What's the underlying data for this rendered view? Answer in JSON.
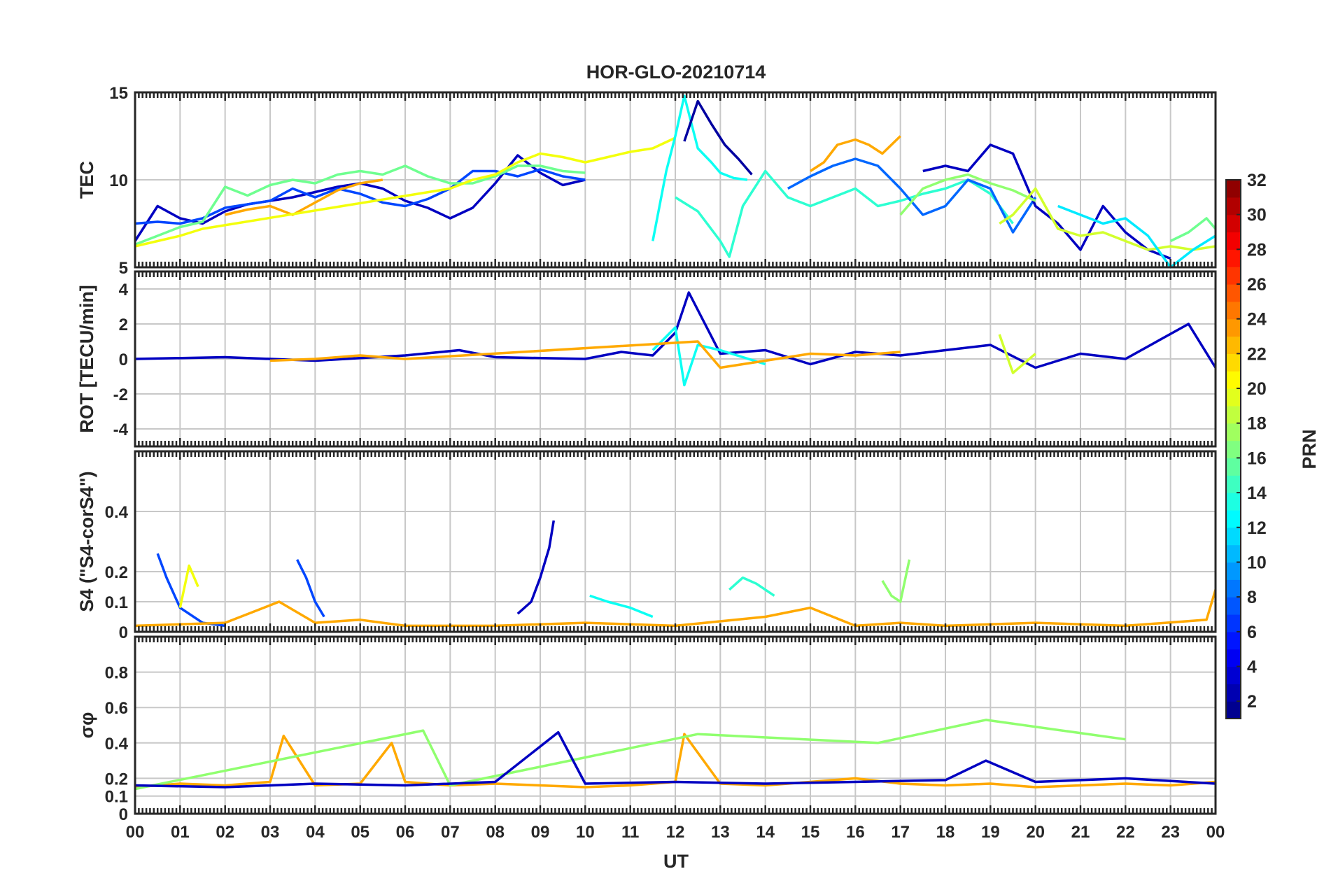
{
  "chart_data": {
    "type": "line",
    "title": "HOR-GLO-20210714",
    "xlabel": "UT",
    "x_ticks": [
      "00",
      "01",
      "02",
      "03",
      "04",
      "05",
      "06",
      "07",
      "08",
      "09",
      "10",
      "11",
      "12",
      "13",
      "14",
      "15",
      "16",
      "17",
      "18",
      "19",
      "20",
      "21",
      "22",
      "23",
      "00"
    ],
    "xlim": [
      0,
      24
    ],
    "grid": true,
    "legend": "colorbar-right",
    "colorbar": {
      "label": "PRN",
      "range": [
        1,
        32
      ],
      "ticks": [
        "2",
        "4",
        "6",
        "8",
        "10",
        "12",
        "14",
        "16",
        "18",
        "20",
        "22",
        "24",
        "26",
        "28",
        "30",
        "32"
      ],
      "colormap": "jet"
    },
    "panels": [
      {
        "ylabel": "TEC",
        "ylim": [
          5,
          15
        ],
        "yticks": [
          "5",
          "10",
          "15"
        ],
        "series": [
          {
            "prn": 3,
            "x": [
              0,
              0.5,
              1,
              1.5,
              2,
              2.5,
              3,
              3.5,
              4,
              4.5,
              5,
              5.5,
              6,
              6.5,
              7,
              7.5,
              8,
              8.5,
              9,
              9.5,
              10
            ],
            "y": [
              6.5,
              8.5,
              7.8,
              7.5,
              8.2,
              8.6,
              8.8,
              9.0,
              9.3,
              9.6,
              9.8,
              9.5,
              8.8,
              8.4,
              7.8,
              8.4,
              9.8,
              11.4,
              10.4,
              9.7,
              10.0
            ]
          },
          {
            "prn": 7,
            "x": [
              0,
              0.5,
              1,
              1.5,
              2,
              2.5,
              3,
              3.5,
              4,
              4.5,
              5,
              5.5,
              6,
              6.5,
              7,
              7.5,
              8,
              8.5,
              9,
              9.5,
              10
            ],
            "y": [
              7.5,
              7.6,
              7.5,
              7.8,
              8.4,
              8.6,
              8.8,
              9.5,
              9.0,
              9.5,
              9.2,
              8.7,
              8.5,
              8.9,
              9.5,
              10.5,
              10.5,
              10.2,
              10.6,
              10.2,
              10.0
            ]
          },
          {
            "prn": 16,
            "x": [
              0,
              0.5,
              1,
              1.5,
              2,
              2.5,
              3,
              3.5,
              4,
              4.5,
              5,
              5.5,
              6,
              6.5,
              7,
              7.5,
              8,
              8.5,
              9,
              9.5,
              10
            ],
            "y": [
              6.3,
              6.8,
              7.3,
              7.6,
              9.6,
              9.1,
              9.7,
              10.0,
              9.8,
              10.3,
              10.5,
              10.3,
              10.8,
              10.2,
              9.8,
              9.8,
              10.2,
              10.8,
              10.8,
              10.5,
              10.4
            ]
          },
          {
            "prn": 23,
            "x": [
              2,
              2.5,
              3,
              3.5,
              4,
              4.5,
              5,
              5.5
            ],
            "y": [
              8.0,
              8.3,
              8.5,
              8.0,
              8.7,
              9.4,
              9.8,
              10.0
            ]
          },
          {
            "prn": 20,
            "x": [
              0,
              0.5,
              1,
              1.5,
              7,
              7.5,
              8,
              8.5,
              9,
              9.5,
              10,
              10.5,
              11,
              11.5,
              12
            ],
            "y": [
              6.2,
              6.5,
              6.8,
              7.2,
              9.5,
              10.0,
              10.3,
              11.0,
              11.5,
              11.3,
              11.0,
              11.3,
              11.6,
              11.8,
              12.4
            ]
          },
          {
            "prn": 13,
            "x": [
              11.5,
              11.8,
              12.0,
              12.2,
              12.5,
              12.8,
              13.0,
              13.3,
              13.6
            ],
            "y": [
              6.5,
              10.5,
              12.5,
              14.8,
              11.8,
              11.0,
              10.4,
              10.1,
              10.0
            ]
          },
          {
            "prn": 14,
            "x": [
              12.0,
              12.5,
              13.0,
              13.2,
              13.5,
              14.0,
              14.5,
              15.0,
              15.5,
              16.0,
              16.5,
              17.0,
              17.5,
              18.0,
              18.5,
              19.0,
              19.5
            ],
            "y": [
              9.0,
              8.2,
              6.5,
              5.6,
              8.5,
              10.5,
              9.0,
              8.5,
              9.0,
              9.5,
              8.5,
              8.8,
              9.2,
              9.5,
              10.0,
              9.2,
              7.5
            ]
          },
          {
            "prn": 2,
            "x": [
              12.2,
              12.5,
              12.8,
              13.1,
              13.4,
              13.7
            ],
            "y": [
              12.2,
              14.5,
              13.2,
              12.0,
              11.2,
              10.3
            ]
          },
          {
            "prn": 23,
            "x": [
              15.0,
              15.3,
              15.6,
              16.0,
              16.3,
              16.6,
              17.0
            ],
            "y": [
              10.5,
              11.0,
              12.0,
              12.3,
              12.0,
              11.5,
              12.5
            ]
          },
          {
            "prn": 8,
            "x": [
              14.5,
              15.0,
              15.5,
              16.0,
              16.5,
              17.0,
              17.5,
              18.0,
              18.5,
              19.0,
              19.5,
              20.0
            ],
            "y": [
              9.5,
              10.2,
              10.8,
              11.2,
              10.8,
              9.5,
              8.0,
              8.5,
              10.0,
              9.5,
              7.0,
              9.0
            ]
          },
          {
            "prn": 3,
            "x": [
              17.5,
              18.0,
              18.5,
              19.0,
              19.5,
              20.0,
              20.5,
              21.0,
              21.5,
              22.0,
              22.5,
              23.0
            ],
            "y": [
              10.5,
              10.8,
              10.5,
              12.0,
              11.5,
              8.5,
              7.5,
              6.0,
              8.5,
              7.0,
              6.0,
              5.5
            ]
          },
          {
            "prn": 17,
            "x": [
              17.0,
              17.5,
              18.0,
              18.5,
              19.0,
              19.5,
              20.0
            ],
            "y": [
              8.0,
              9.5,
              10.0,
              10.3,
              9.8,
              9.4,
              8.8
            ]
          },
          {
            "prn": 19,
            "x": [
              19.2,
              19.5,
              20.0,
              20.5,
              21.0,
              21.5,
              22.0,
              22.5,
              23.0,
              23.5,
              24.0
            ],
            "y": [
              7.5,
              8.0,
              9.5,
              7.2,
              6.8,
              7.0,
              6.5,
              6.0,
              6.2,
              6.0,
              6.2
            ]
          },
          {
            "prn": 12,
            "x": [
              20.5,
              21.0,
              21.5,
              22.0,
              22.5,
              23.0,
              23.5,
              24.0
            ],
            "y": [
              8.5,
              8.0,
              7.5,
              7.8,
              6.8,
              5.0,
              6.0,
              6.8
            ]
          },
          {
            "prn": 16,
            "x": [
              23.0,
              23.4,
              23.8,
              24.0
            ],
            "y": [
              6.5,
              7.0,
              7.8,
              7.2
            ]
          }
        ]
      },
      {
        "ylabel": "ROT [TECU/min]",
        "ylim": [
          -5,
          5
        ],
        "yticks": [
          "-4",
          "-2",
          "0",
          "2",
          "4"
        ],
        "series": [
          {
            "prn": 3,
            "x": [
              0,
              2,
              4,
              6,
              7.2,
              8,
              10,
              10.8,
              11.5,
              12.0,
              12.3,
              13,
              14,
              15,
              16,
              17,
              18,
              19,
              20,
              21,
              22,
              23.4,
              24
            ],
            "y": [
              0,
              0.1,
              -0.1,
              0.2,
              0.5,
              0.1,
              0,
              0.4,
              0.2,
              1.5,
              3.8,
              0.3,
              0.5,
              -0.3,
              0.4,
              0.2,
              0.5,
              0.8,
              -0.5,
              0.3,
              0,
              2.0,
              -0.5
            ]
          },
          {
            "prn": 13,
            "x": [
              11.5,
              12.0,
              12.2,
              12.5,
              13,
              14
            ],
            "y": [
              0.5,
              1.8,
              -1.5,
              0.8,
              0.5,
              -0.3
            ]
          },
          {
            "prn": 23,
            "x": [
              3,
              4,
              5,
              6,
              12.5,
              13,
              15,
              16,
              17
            ],
            "y": [
              -0.1,
              0,
              0.2,
              0,
              1.0,
              -0.5,
              0.3,
              0.2,
              0.4
            ]
          },
          {
            "prn": 19,
            "x": [
              19.2,
              19.5,
              20
            ],
            "y": [
              1.4,
              -0.8,
              0.3
            ]
          }
        ]
      },
      {
        "ylabel": "S4 (\"S4-corS4\")",
        "ylim": [
          0,
          0.6
        ],
        "yticks": [
          "0",
          "0.1",
          "0.2",
          "0.4"
        ],
        "series": [
          {
            "prn": 7,
            "x": [
              0.5,
              0.7,
              1.0,
              1.5,
              2.0
            ],
            "y": [
              0.26,
              0.18,
              0.08,
              0.03,
              0.02
            ]
          },
          {
            "prn": 20,
            "x": [
              1.0,
              1.2,
              1.4
            ],
            "y": [
              0.08,
              0.22,
              0.15
            ]
          },
          {
            "prn": 7,
            "x": [
              3.6,
              3.8,
              4.0,
              4.2
            ],
            "y": [
              0.24,
              0.18,
              0.1,
              0.05
            ]
          },
          {
            "prn": 3,
            "x": [
              8.5,
              8.8,
              9.0,
              9.2,
              9.3
            ],
            "y": [
              0.06,
              0.1,
              0.18,
              0.28,
              0.37
            ]
          },
          {
            "prn": 13,
            "x": [
              10.1,
              10.5,
              11.0,
              11.5
            ],
            "y": [
              0.12,
              0.1,
              0.08,
              0.05
            ]
          },
          {
            "prn": 14,
            "x": [
              13.2,
              13.5,
              13.8,
              14.2
            ],
            "y": [
              0.14,
              0.18,
              0.16,
              0.12
            ]
          },
          {
            "prn": 17,
            "x": [
              16.6,
              16.8,
              17.0,
              17.2
            ],
            "y": [
              0.17,
              0.12,
              0.1,
              0.24
            ]
          },
          {
            "prn": 23,
            "x": [
              0,
              2,
              3.2,
              4,
              5,
              6,
              8,
              10,
              12,
              14,
              15,
              16,
              17,
              18,
              20,
              22,
              23.8,
              24
            ],
            "y": [
              0.02,
              0.03,
              0.1,
              0.03,
              0.04,
              0.02,
              0.02,
              0.03,
              0.02,
              0.05,
              0.08,
              0.02,
              0.03,
              0.02,
              0.03,
              0.02,
              0.04,
              0.14
            ]
          }
        ]
      },
      {
        "ylabel": "σφ",
        "ylim": [
          0,
          1
        ],
        "yticks": [
          "0",
          "0.1",
          "0.2",
          "0.4",
          "0.6",
          "0.8"
        ],
        "series": [
          {
            "prn": 23,
            "x": [
              0,
              1,
              2,
              3,
              3.3,
              4,
              5,
              5.7,
              6,
              7,
              8,
              9,
              10,
              11,
              12,
              12.2,
              13,
              14,
              15,
              16,
              17,
              18,
              19,
              20,
              21,
              22,
              23,
              24
            ],
            "y": [
              0.15,
              0.17,
              0.16,
              0.18,
              0.44,
              0.16,
              0.17,
              0.4,
              0.18,
              0.16,
              0.17,
              0.16,
              0.15,
              0.16,
              0.18,
              0.45,
              0.17,
              0.16,
              0.18,
              0.2,
              0.17,
              0.16,
              0.17,
              0.15,
              0.16,
              0.17,
              0.16,
              0.18
            ]
          },
          {
            "prn": 17,
            "x": [
              0,
              6.4,
              7,
              12.5,
              16.5,
              18.9,
              22
            ],
            "y": [
              0.14,
              0.47,
              0.16,
              0.45,
              0.4,
              0.53,
              0.42
            ]
          },
          {
            "prn": 3,
            "x": [
              0,
              2,
              4,
              6,
              8,
              9.4,
              10,
              12,
              14,
              16,
              18,
              18.9,
              20,
              22,
              24
            ],
            "y": [
              0.16,
              0.15,
              0.17,
              0.16,
              0.18,
              0.46,
              0.17,
              0.18,
              0.17,
              0.18,
              0.19,
              0.3,
              0.18,
              0.2,
              0.17
            ]
          }
        ]
      }
    ]
  }
}
